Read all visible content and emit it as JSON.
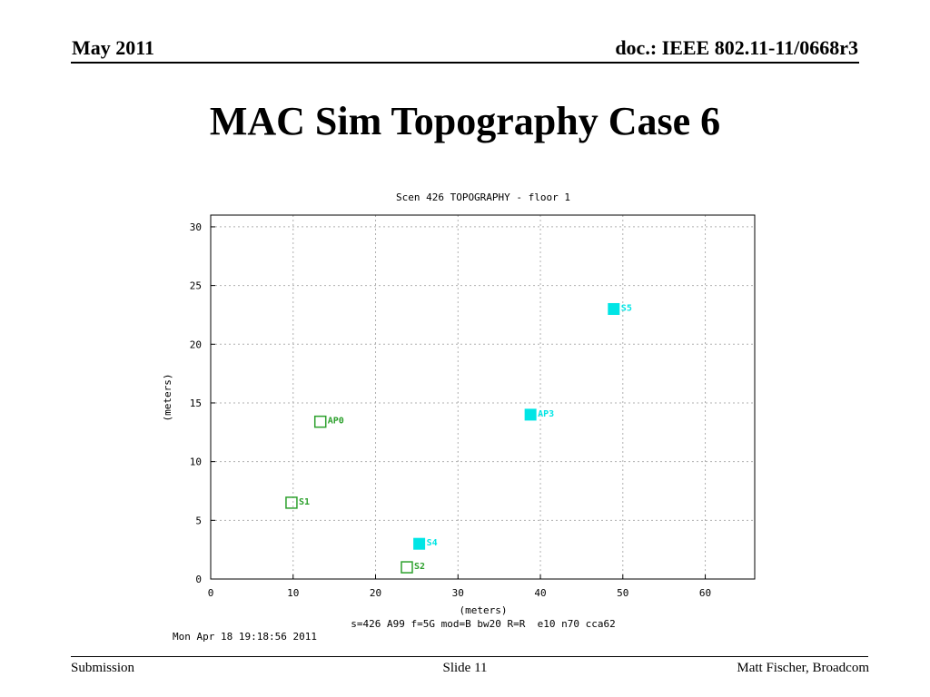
{
  "header": {
    "date": "May 2011",
    "doc": "doc.: IEEE 802.11-11/0668r3"
  },
  "slide_title": "MAC Sim Topography Case 6",
  "chart_data": {
    "type": "scatter",
    "title": "Scen 426 TOPOGRAPHY - floor 1",
    "xlabel": "(meters)",
    "ylabel": "(meters)",
    "xlim": [
      0,
      66
    ],
    "ylim": [
      0,
      31
    ],
    "xticks": [
      "0",
      "10",
      "20",
      "30",
      "40",
      "50",
      "60"
    ],
    "yticks": [
      "0",
      "5",
      "10",
      "15",
      "20",
      "25",
      "30"
    ],
    "grid": true,
    "caption": "s=426 A99 f=5G mod=B bw20 R=R  e10 n70 cca62",
    "timestamp": "Mon Apr 18 19:18:56 2011",
    "colors": {
      "green": "#2ca02c",
      "cyan": "#00e5e5"
    },
    "points": [
      {
        "label": "AP0",
        "x": 13.3,
        "y": 13.4,
        "color": "#2ca02c",
        "filled": false
      },
      {
        "label": "S1",
        "x": 9.8,
        "y": 6.5,
        "color": "#2ca02c",
        "filled": false
      },
      {
        "label": "S2",
        "x": 23.8,
        "y": 1.0,
        "color": "#2ca02c",
        "filled": false
      },
      {
        "label": "S4",
        "x": 25.3,
        "y": 3.0,
        "color": "#00e5e5",
        "filled": true
      },
      {
        "label": "AP3",
        "x": 38.8,
        "y": 14.0,
        "color": "#00e5e5",
        "filled": true
      },
      {
        "label": "S5",
        "x": 48.9,
        "y": 23.0,
        "color": "#00e5e5",
        "filled": true
      }
    ]
  },
  "footer": {
    "left": "Submission",
    "center": "Slide 11",
    "right": "Matt Fischer, Broadcom"
  }
}
